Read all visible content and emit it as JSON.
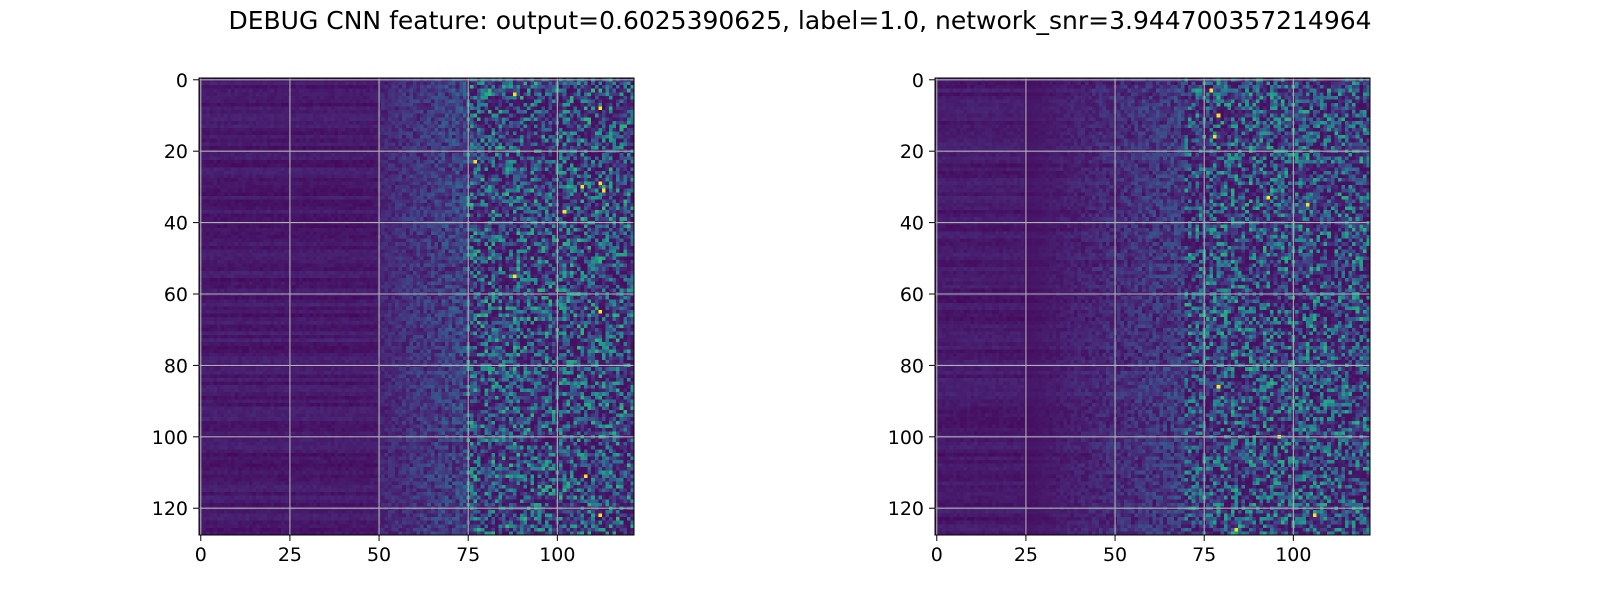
{
  "chart_data": {
    "title": "DEBUG CNN feature: output=0.6025390625, label=1.0, network_snr=3.944700357214964",
    "panels": [
      {
        "type": "heatmap",
        "colormap": "viridis",
        "rows": 128,
        "cols": 122,
        "xlim": [
          -0.5,
          121.5
        ],
        "ylim": [
          127.5,
          -0.5
        ],
        "xticks": [
          0,
          25,
          50,
          75,
          100
        ],
        "yticks": [
          0,
          20,
          40,
          60,
          80,
          100,
          120
        ],
        "grid": true,
        "value_range": [
          0,
          1
        ],
        "bright_points": [
          [
            4,
            88
          ],
          [
            8,
            112
          ],
          [
            30,
            107
          ],
          [
            29,
            112
          ],
          [
            31,
            113
          ],
          [
            37,
            102
          ],
          [
            65,
            112
          ],
          [
            111,
            108
          ],
          [
            122,
            112
          ],
          [
            55,
            88
          ],
          [
            23,
            77
          ]
        ],
        "pattern": "low and uniform for columns 0-50, noisier mid values for columns 50-75, high-variance speckle for columns 75-121"
      },
      {
        "type": "heatmap",
        "colormap": "viridis",
        "rows": 128,
        "cols": 122,
        "xlim": [
          -0.5,
          121.5
        ],
        "ylim": [
          127.5,
          -0.5
        ],
        "xticks": [
          0,
          25,
          50,
          75,
          100
        ],
        "yticks": [
          0,
          20,
          40,
          60,
          80,
          100,
          120
        ],
        "grid": true,
        "value_range": [
          0,
          1
        ],
        "bright_points": [
          [
            3,
            77
          ],
          [
            10,
            79
          ],
          [
            16,
            78
          ],
          [
            35,
            104
          ],
          [
            33,
            93
          ],
          [
            86,
            79
          ],
          [
            100,
            96
          ],
          [
            122,
            106
          ],
          [
            126,
            84
          ]
        ],
        "pattern": "low and uniform for columns 0-25, gradually noisier toward the right, speckle concentrated for columns 70-121"
      }
    ]
  }
}
